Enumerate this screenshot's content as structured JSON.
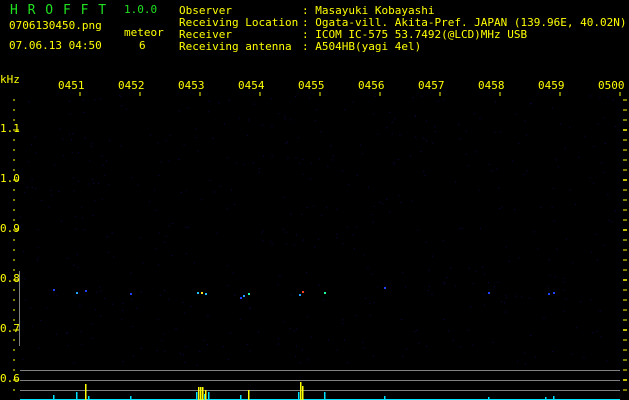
{
  "app": {
    "name": "H R O F F T",
    "version": "1.0.0"
  },
  "file": {
    "name": "0706130450.png",
    "datetime": "07.06.13 04:50"
  },
  "meteor": {
    "label": "meteor",
    "count": "6"
  },
  "info": [
    {
      "label": "Observer",
      "value": ": Masayuki Kobayashi"
    },
    {
      "label": "Receiving Location",
      "value": ": Ogata-vill. Akita-Pref. JAPAN (139.96E, 40.02N)"
    },
    {
      "label": "Receiver",
      "value": ": ICOM IC-575 53.7492(@LCD)MHz USB"
    },
    {
      "label": "Receiving antenna",
      "value": ": A504HB(yagi 4el)"
    }
  ],
  "axis": {
    "unit": "kHz",
    "freq_labels": [
      "1.1",
      "1.0",
      "0.9",
      "0.8",
      "0.7",
      "0.6"
    ],
    "time_labels": [
      "0451",
      "0452",
      "0453",
      "0454",
      "0455",
      "0456",
      "0457",
      "0458",
      "0459",
      "0500"
    ]
  },
  "colors": {
    "text": "#ffff00",
    "logo": "#20e020",
    "signal": "#00e0ff",
    "grid": "#808080"
  }
}
